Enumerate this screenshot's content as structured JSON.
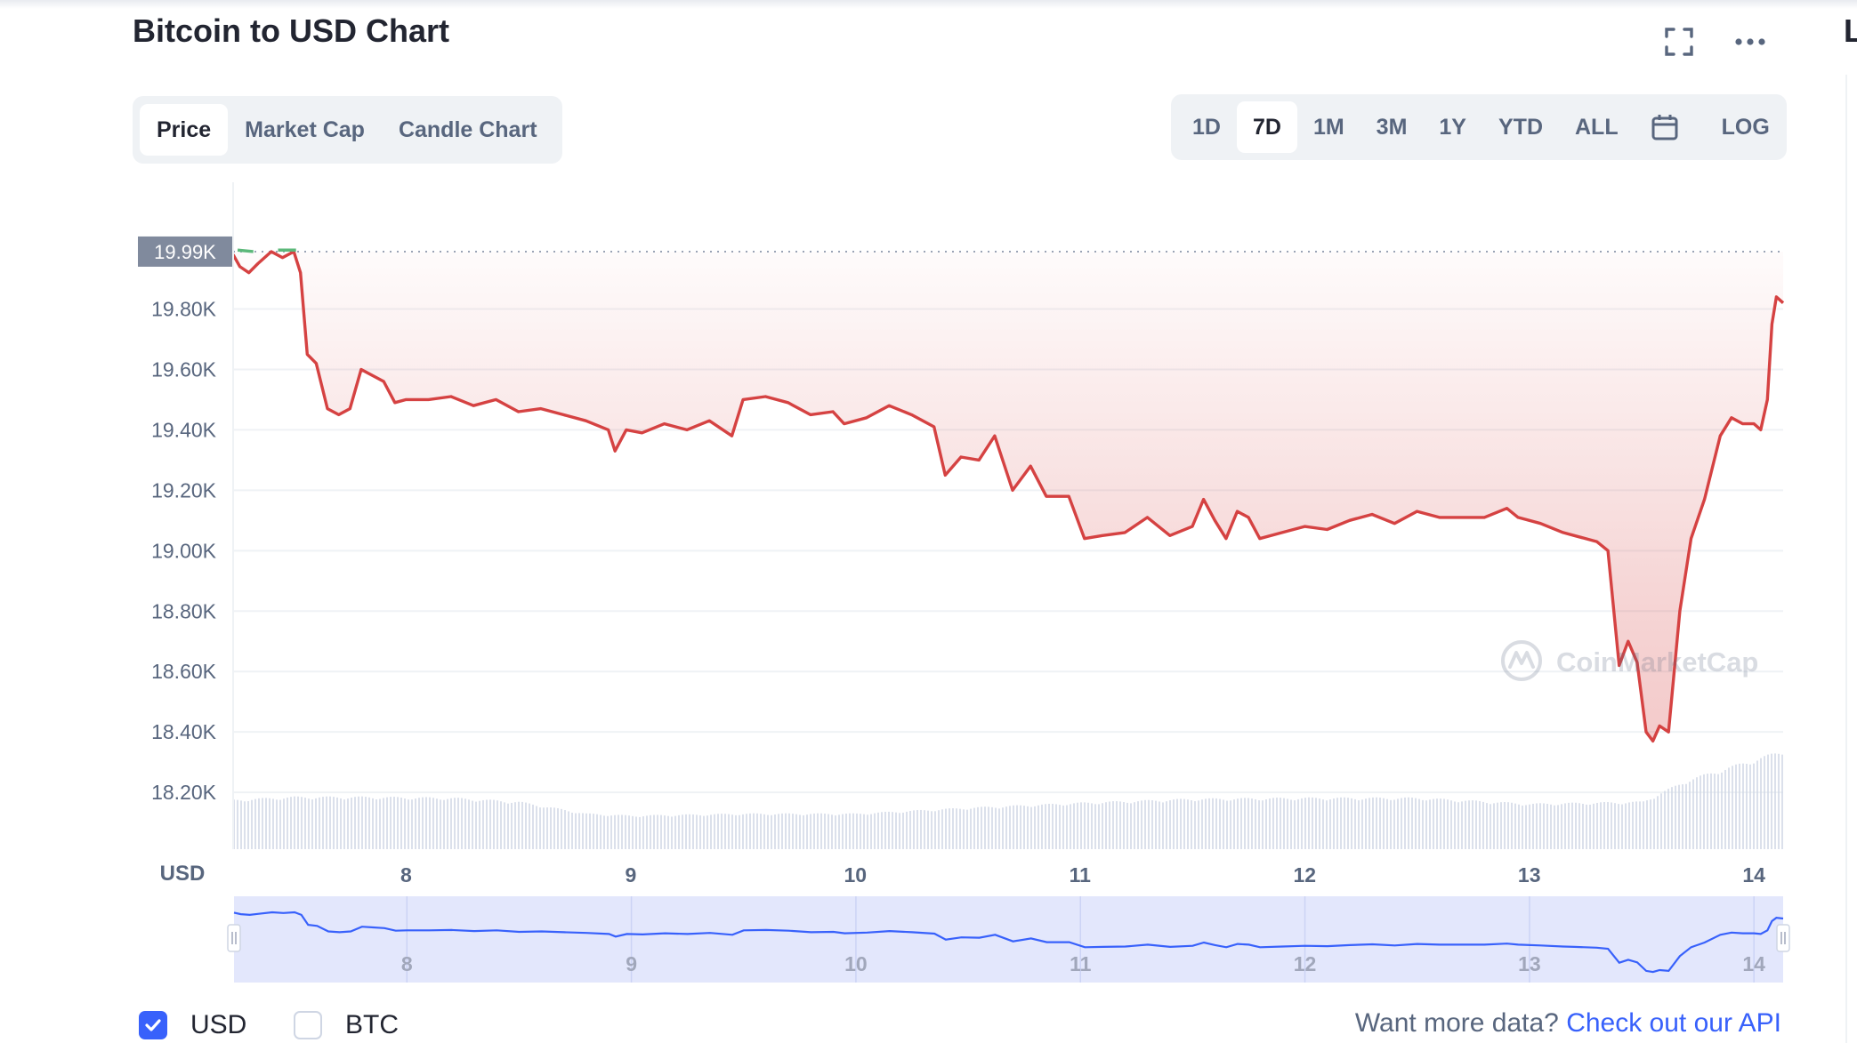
{
  "title": "Bitcoin to USD Chart",
  "edge_letter": "L",
  "header_icons": {
    "fullscreen": "fullscreen-icon",
    "more": "more-icon"
  },
  "type_tabs": [
    {
      "label": "Price",
      "active": true
    },
    {
      "label": "Market Cap",
      "active": false
    },
    {
      "label": "Candle Chart",
      "active": false
    }
  ],
  "time_tabs": [
    {
      "label": "1D",
      "active": false
    },
    {
      "label": "7D",
      "active": true
    },
    {
      "label": "1M",
      "active": false
    },
    {
      "label": "3M",
      "active": false
    },
    {
      "label": "1Y",
      "active": false
    },
    {
      "label": "YTD",
      "active": false
    },
    {
      "label": "ALL",
      "active": false
    }
  ],
  "calendar_icon": "calendar-icon",
  "log_label": "LOG",
  "colors": {
    "down": "#d54242",
    "up": "#5cb87a",
    "accent": "#3861fb",
    "navigator_fill": "#e3e7fc"
  },
  "chart_data": {
    "type": "line",
    "currency_label": "USD",
    "y_ticks": [
      "19.80K",
      "19.60K",
      "19.40K",
      "19.20K",
      "19.00K",
      "18.80K",
      "18.60K",
      "18.40K",
      "18.20K"
    ],
    "y_tick_values": [
      19800,
      19600,
      19400,
      19200,
      19000,
      18800,
      18600,
      18400,
      18200
    ],
    "ylim": [
      18012,
      20190
    ],
    "x_ticks": [
      "8",
      "9",
      "10",
      "11",
      "12",
      "13",
      "14"
    ],
    "x_tick_values": [
      8,
      9,
      10,
      11,
      12,
      13,
      14
    ],
    "xlim": [
      7.23,
      14.13
    ],
    "reference_value": 19990,
    "reference_label": "19.99K",
    "series": [
      {
        "x": [
          7.23,
          7.26,
          7.3,
          7.34,
          7.4,
          7.45,
          7.5,
          7.53,
          7.56,
          7.6,
          7.65,
          7.7,
          7.75,
          7.8,
          7.85,
          7.9,
          7.95,
          8.0,
          8.1,
          8.2,
          8.3,
          8.4,
          8.5,
          8.6,
          8.7,
          8.8,
          8.9,
          8.93,
          8.98,
          9.05,
          9.15,
          9.25,
          9.35,
          9.45,
          9.5,
          9.6,
          9.7,
          9.8,
          9.9,
          9.95,
          10.05,
          10.15,
          10.25,
          10.35,
          10.4,
          10.47,
          10.55,
          10.62,
          10.7,
          10.78,
          10.85,
          10.95,
          11.02,
          11.1,
          11.2,
          11.3,
          11.4,
          11.5,
          11.55,
          11.6,
          11.65,
          11.7,
          11.75,
          11.8,
          11.9,
          12.0,
          12.1,
          12.2,
          12.3,
          12.4,
          12.5,
          12.6,
          12.7,
          12.8,
          12.9,
          12.95,
          13.05,
          13.15,
          13.2,
          13.3,
          13.35,
          13.4,
          13.44,
          13.48,
          13.52,
          13.55,
          13.58,
          13.62,
          13.67,
          13.72,
          13.78,
          13.85,
          13.9,
          13.95,
          14.0,
          14.03,
          14.06,
          14.08,
          14.1,
          14.13
        ],
        "y": [
          19980,
          19940,
          19920,
          19950,
          19990,
          19970,
          19990,
          19920,
          19650,
          19620,
          19470,
          19450,
          19470,
          19600,
          19580,
          19560,
          19490,
          19500,
          19500,
          19510,
          19480,
          19500,
          19460,
          19470,
          19450,
          19430,
          19400,
          19330,
          19400,
          19390,
          19420,
          19400,
          19430,
          19380,
          19500,
          19510,
          19490,
          19450,
          19460,
          19420,
          19440,
          19480,
          19450,
          19410,
          19250,
          19310,
          19300,
          19380,
          19200,
          19280,
          19180,
          19180,
          19040,
          19050,
          19060,
          19110,
          19050,
          19080,
          19170,
          19100,
          19040,
          19130,
          19110,
          19040,
          19060,
          19080,
          19070,
          19100,
          19120,
          19090,
          19130,
          19110,
          19110,
          19110,
          19140,
          19110,
          19090,
          19060,
          19050,
          19030,
          19000,
          18620,
          18700,
          18630,
          18400,
          18370,
          18420,
          18400,
          18800,
          19040,
          19170,
          19380,
          19440,
          19420,
          19420,
          19400,
          19500,
          19750,
          19840,
          19820
        ]
      }
    ],
    "volume_series": {
      "x": [
        7.23,
        7.5,
        7.8,
        8.2,
        8.5,
        8.8,
        9.0,
        9.5,
        10.0,
        10.5,
        11.0,
        11.5,
        12.0,
        12.5,
        13.0,
        13.5,
        13.7,
        14.13
      ],
      "y": [
        50,
        53,
        53,
        52,
        48,
        36,
        34,
        36,
        36,
        42,
        47,
        51,
        52,
        52,
        46,
        48,
        70,
        100
      ]
    },
    "navigator": {
      "x_ticks": [
        "8",
        "9",
        "10",
        "11",
        "12",
        "13",
        "14"
      ],
      "x_tick_values": [
        8,
        9,
        10,
        11,
        12,
        13,
        14
      ]
    },
    "watermark": "CoinMarketCap"
  },
  "legend": [
    {
      "label": "USD",
      "checked": true
    },
    {
      "label": "BTC",
      "checked": false
    }
  ],
  "footer": {
    "prefix": "Want more data? ",
    "link": "Check out our API"
  }
}
